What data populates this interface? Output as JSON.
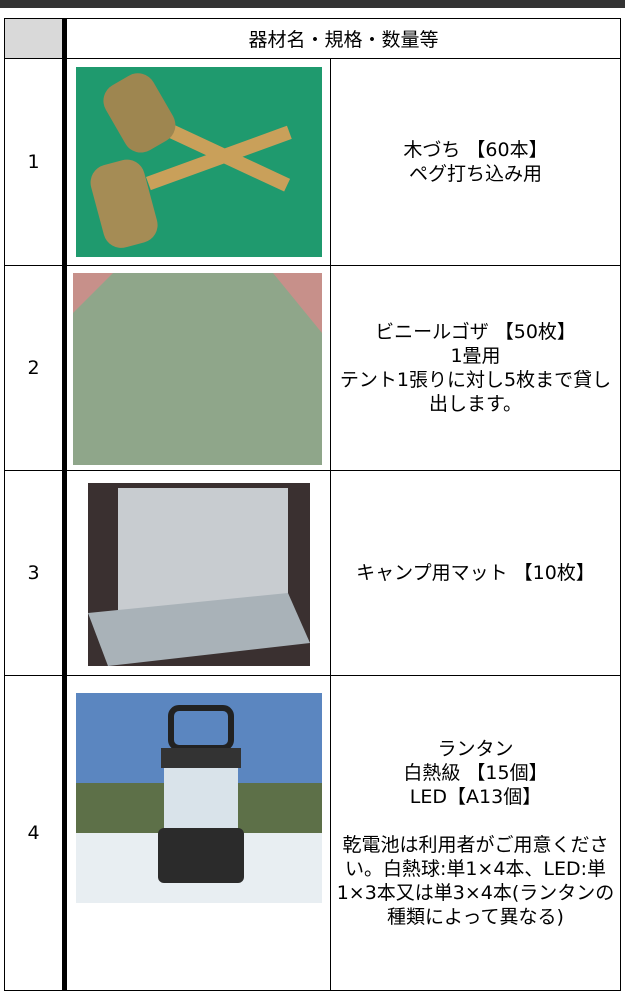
{
  "table": {
    "header": {
      "title": "器材名・規格・数量等"
    },
    "rows": [
      {
        "number": "1",
        "lines": [
          "木づち 【60本】",
          "ペグ打ち込み用"
        ]
      },
      {
        "number": "2",
        "lines": [
          "ビニールゴザ 【50枚】",
          "1畳用",
          "テント1張りに対し5枚まで貸し出します。"
        ]
      },
      {
        "number": "3",
        "lines": [
          "キャンプ用マット 【10枚】"
        ]
      },
      {
        "number": "4",
        "lines": [
          "ランタン",
          "白熱級 【15個】",
          "LED【A13個】"
        ],
        "note": "乾電池は利用者がご用意ください。白熱球:単1×4本、LED:単1×3本又は単3×4本(ランタンの種類によって異なる)"
      }
    ]
  }
}
